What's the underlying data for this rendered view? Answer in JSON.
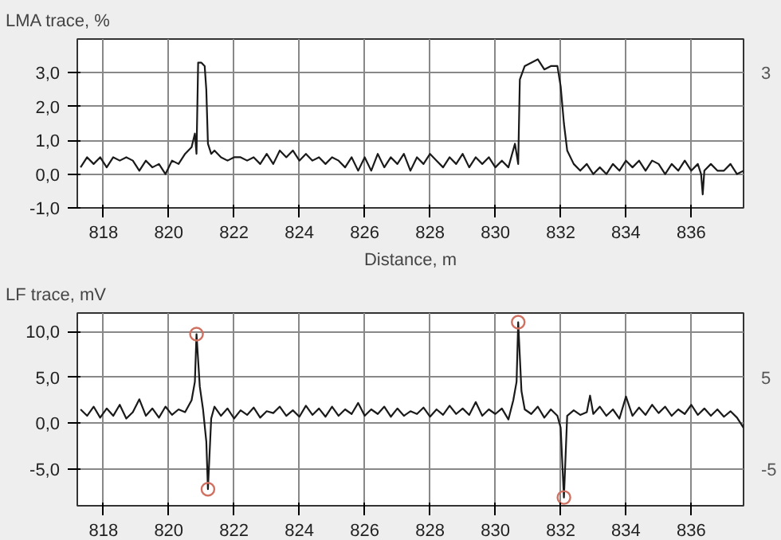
{
  "chart_data": [
    {
      "type": "line",
      "title": "LMA trace, %",
      "xlabel": "Distance, m",
      "grid": true,
      "xlim": [
        817.2,
        837.6
      ],
      "xticks": [
        818,
        820,
        822,
        824,
        826,
        828,
        830,
        832,
        834,
        836
      ],
      "ylim": [
        -1.0,
        4.0
      ],
      "yticks": [
        {
          "value": -1,
          "label": "-1,0"
        },
        {
          "value": 0,
          "label": "0,0"
        },
        {
          "value": 1,
          "label": "1,0"
        },
        {
          "value": 2,
          "label": "2,0"
        },
        {
          "value": 3,
          "label": "3,0"
        }
      ],
      "annotations": [
        "3"
      ],
      "series": [
        {
          "color": "#1a1a1a",
          "marker": "none",
          "x": [
            817.3,
            817.5,
            817.7,
            817.9,
            818.1,
            818.3,
            818.5,
            818.7,
            818.9,
            819.1,
            819.3,
            819.5,
            819.7,
            819.9,
            820.1,
            820.3,
            820.5,
            820.7,
            820.8,
            820.85,
            820.9,
            821.0,
            821.1,
            821.15,
            821.2,
            821.3,
            821.4,
            821.6,
            821.8,
            822.0,
            822.2,
            822.4,
            822.6,
            822.8,
            823.0,
            823.2,
            823.4,
            823.6,
            823.8,
            824.0,
            824.2,
            824.4,
            824.6,
            824.8,
            825.0,
            825.2,
            825.4,
            825.6,
            825.8,
            826.0,
            826.2,
            826.4,
            826.6,
            826.8,
            827.0,
            827.2,
            827.4,
            827.6,
            827.8,
            828.0,
            828.2,
            828.4,
            828.6,
            828.8,
            829.0,
            829.2,
            829.4,
            829.6,
            829.8,
            830.0,
            830.2,
            830.4,
            830.6,
            830.7,
            830.75,
            830.9,
            831.1,
            831.3,
            831.5,
            831.7,
            831.9,
            832.0,
            832.1,
            832.2,
            832.4,
            832.6,
            832.8,
            833.0,
            833.2,
            833.4,
            833.6,
            833.8,
            834.0,
            834.2,
            834.4,
            834.6,
            834.8,
            835.0,
            835.2,
            835.4,
            835.6,
            835.8,
            836.0,
            836.2,
            836.3,
            836.35,
            836.4,
            836.6,
            836.8,
            837.0,
            837.2,
            837.4,
            837.6
          ],
          "values": [
            0.2,
            0.5,
            0.3,
            0.5,
            0.2,
            0.5,
            0.4,
            0.5,
            0.4,
            0.1,
            0.4,
            0.2,
            0.3,
            0.0,
            0.4,
            0.3,
            0.6,
            0.8,
            1.2,
            0.6,
            3.3,
            3.3,
            3.2,
            2.5,
            0.9,
            0.6,
            0.7,
            0.5,
            0.4,
            0.5,
            0.5,
            0.4,
            0.5,
            0.3,
            0.6,
            0.3,
            0.7,
            0.5,
            0.7,
            0.4,
            0.6,
            0.4,
            0.5,
            0.3,
            0.5,
            0.4,
            0.2,
            0.5,
            0.1,
            0.5,
            0.1,
            0.6,
            0.2,
            0.5,
            0.3,
            0.6,
            0.1,
            0.5,
            0.3,
            0.6,
            0.4,
            0.2,
            0.5,
            0.3,
            0.6,
            0.2,
            0.5,
            0.3,
            0.5,
            0.2,
            0.4,
            0.2,
            0.9,
            0.3,
            2.8,
            3.2,
            3.3,
            3.4,
            3.1,
            3.2,
            3.2,
            2.6,
            1.5,
            0.7,
            0.3,
            0.1,
            0.3,
            0.0,
            0.2,
            0.0,
            0.3,
            0.1,
            0.4,
            0.2,
            0.4,
            0.1,
            0.4,
            0.3,
            0.0,
            0.3,
            0.1,
            0.4,
            0.1,
            0.3,
            0.0,
            -0.6,
            0.1,
            0.3,
            0.1,
            0.1,
            0.3,
            0.0,
            0.1
          ]
        }
      ]
    },
    {
      "type": "line",
      "title": "LF trace, mV",
      "grid": true,
      "xlim": [
        817.2,
        837.6
      ],
      "xticks": [
        818,
        820,
        822,
        824,
        826,
        828,
        830,
        832,
        834,
        836
      ],
      "ylim": [
        -9.0,
        12.0
      ],
      "yticks": [
        {
          "value": -5,
          "label": "-5,0"
        },
        {
          "value": 0,
          "label": "0,0"
        },
        {
          "value": 5,
          "label": "5,0"
        },
        {
          "value": 10,
          "label": "10,0"
        }
      ],
      "y2lim": [
        -9.0,
        12.0
      ],
      "y2ticks": [
        {
          "value": -5,
          "label": "-5"
        },
        5
      ],
      "series": [
        {
          "color": "#1a1a1a",
          "marker": "none",
          "x": [
            817.3,
            817.5,
            817.7,
            817.9,
            818.1,
            818.3,
            818.5,
            818.7,
            818.9,
            819.1,
            819.3,
            819.5,
            819.7,
            819.9,
            820.1,
            820.3,
            820.5,
            820.7,
            820.8,
            820.85,
            820.95,
            821.05,
            821.15,
            821.2,
            821.3,
            821.4,
            821.6,
            821.8,
            822.0,
            822.2,
            822.4,
            822.6,
            822.8,
            823.0,
            823.2,
            823.4,
            823.6,
            823.8,
            824.0,
            824.2,
            824.4,
            824.6,
            824.8,
            825.0,
            825.2,
            825.4,
            825.6,
            825.8,
            826.0,
            826.2,
            826.4,
            826.6,
            826.8,
            827.0,
            827.2,
            827.4,
            827.6,
            827.8,
            828.0,
            828.2,
            828.4,
            828.6,
            828.8,
            829.0,
            829.2,
            829.4,
            829.6,
            829.8,
            830.0,
            830.2,
            830.4,
            830.55,
            830.65,
            830.7,
            830.8,
            830.9,
            831.1,
            831.3,
            831.5,
            831.7,
            831.9,
            832.0,
            832.1,
            832.2,
            832.4,
            832.6,
            832.8,
            832.9,
            833.0,
            833.2,
            833.4,
            833.6,
            833.8,
            834.0,
            834.2,
            834.4,
            834.6,
            834.8,
            835.0,
            835.2,
            835.4,
            835.6,
            835.8,
            836.0,
            836.2,
            836.4,
            836.6,
            836.8,
            837.0,
            837.2,
            837.4,
            837.6
          ],
          "values": [
            1.5,
            0.8,
            1.8,
            0.6,
            1.6,
            0.8,
            2.0,
            0.5,
            1.2,
            2.6,
            0.8,
            1.6,
            0.6,
            1.8,
            0.9,
            1.5,
            1.2,
            2.5,
            4.5,
            9.7,
            4.0,
            1.5,
            -2.0,
            -7.2,
            0.5,
            1.8,
            0.8,
            1.6,
            0.5,
            1.4,
            0.9,
            1.7,
            0.6,
            1.3,
            1.1,
            1.8,
            0.8,
            1.4,
            0.7,
            1.9,
            0.9,
            1.6,
            0.7,
            1.8,
            0.8,
            1.5,
            1.0,
            2.2,
            0.8,
            1.5,
            1.0,
            1.8,
            0.7,
            1.6,
            0.8,
            1.3,
            1.0,
            1.7,
            0.7,
            1.5,
            0.9,
            1.9,
            1.0,
            1.6,
            0.9,
            2.3,
            0.8,
            1.5,
            1.0,
            1.6,
            0.4,
            2.5,
            4.5,
            11.0,
            3.5,
            1.5,
            1.0,
            1.8,
            0.6,
            1.5,
            0.8,
            -0.5,
            -8.1,
            0.8,
            1.4,
            0.9,
            1.2,
            3.0,
            1.0,
            1.8,
            0.8,
            1.5,
            0.5,
            2.9,
            0.8,
            1.7,
            0.9,
            2.0,
            1.1,
            1.8,
            0.8,
            1.5,
            1.0,
            2.0,
            0.9,
            1.6,
            0.8,
            1.5,
            0.7,
            1.3,
            0.6,
            -0.5
          ]
        },
        {
          "type": "scatter",
          "color": "#d07060",
          "marker": "circle",
          "x": [
            820.85,
            821.2,
            830.7,
            832.1
          ],
          "values": [
            9.7,
            -7.2,
            11.0,
            -8.1
          ]
        }
      ]
    }
  ]
}
